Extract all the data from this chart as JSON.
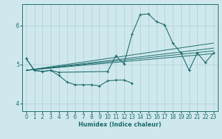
{
  "xlabel": "Humidex (Indice chaleur)",
  "ylabel": "",
  "xlim": [
    -0.5,
    23.5
  ],
  "ylim": [
    3.8,
    6.55
  ],
  "yticks": [
    4,
    5,
    6
  ],
  "xticks": [
    0,
    1,
    2,
    3,
    4,
    5,
    6,
    7,
    8,
    9,
    10,
    11,
    12,
    13,
    14,
    15,
    16,
    17,
    18,
    19,
    20,
    21,
    22,
    23
  ],
  "bg_color": "#cfe8ed",
  "grid_color": "#aecdd4",
  "line_color": "#1a6b6b",
  "series_main": {
    "x": [
      0,
      1,
      2,
      3,
      4,
      10,
      11,
      12,
      13,
      14,
      15,
      16,
      17,
      18,
      19,
      20,
      21,
      22,
      23
    ],
    "y": [
      5.15,
      4.85,
      4.82,
      4.85,
      4.8,
      4.82,
      5.22,
      5.02,
      5.78,
      6.28,
      6.3,
      6.1,
      6.02,
      5.55,
      5.3,
      4.85,
      5.3,
      5.05,
      5.3
    ]
  },
  "series_low": {
    "x": [
      0,
      1,
      2,
      3,
      4,
      5,
      6,
      7,
      8,
      9,
      10,
      11,
      12,
      13
    ],
    "y": [
      5.15,
      4.85,
      4.82,
      4.85,
      4.72,
      4.55,
      4.48,
      4.48,
      4.48,
      4.45,
      4.58,
      4.6,
      4.6,
      4.52
    ]
  },
  "trend_lines": [
    {
      "x": [
        0,
        23
      ],
      "y": [
        4.85,
        5.28
      ]
    },
    {
      "x": [
        0,
        23
      ],
      "y": [
        4.85,
        5.35
      ]
    },
    {
      "x": [
        0,
        23
      ],
      "y": [
        4.85,
        5.42
      ]
    },
    {
      "x": [
        0,
        23
      ],
      "y": [
        4.85,
        5.55
      ]
    }
  ]
}
